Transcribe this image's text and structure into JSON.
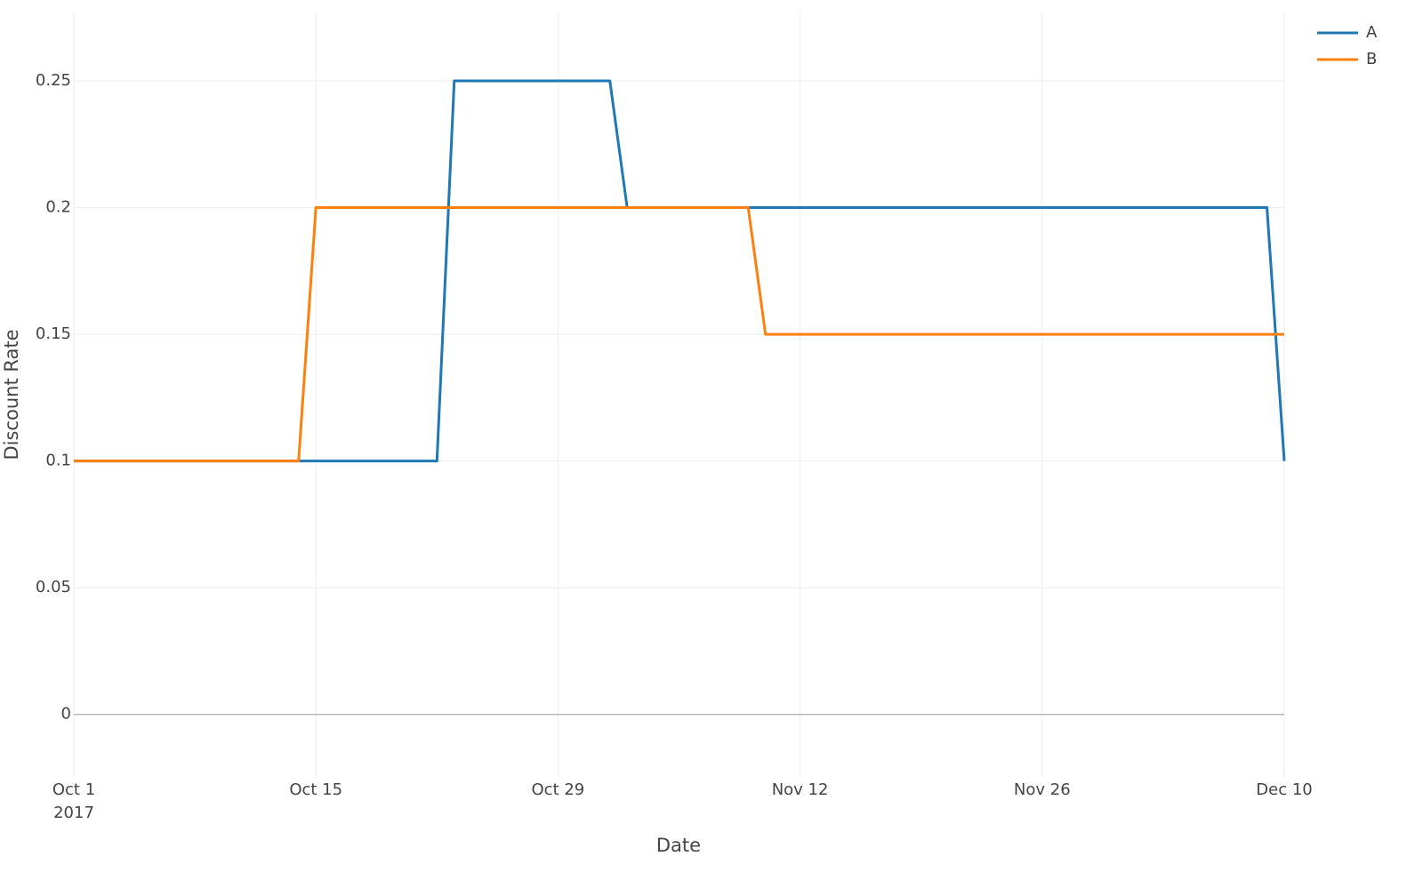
{
  "chart_data": {
    "type": "line",
    "x_label": "Date",
    "y_label": "Discount Rate",
    "x": [
      "2017-10-01",
      "2017-10-14",
      "2017-10-15",
      "2017-10-22",
      "2017-10-23",
      "2017-11-01",
      "2017-11-02",
      "2017-11-09",
      "2017-11-10",
      "2017-12-09",
      "2017-12-10"
    ],
    "series": [
      {
        "name": "A",
        "color": "#1f77b4",
        "values": [
          0.1,
          0.1,
          0.1,
          0.1,
          0.25,
          0.25,
          0.2,
          0.2,
          0.2,
          0.2,
          0.1
        ]
      },
      {
        "name": "B",
        "color": "#ff7f0e",
        "values": [
          0.1,
          0.1,
          0.2,
          0.2,
          0.2,
          0.2,
          0.2,
          0.2,
          0.15,
          0.15,
          0.15
        ]
      }
    ],
    "xlim": [
      "2017-10-01",
      "2017-12-10"
    ],
    "xticks": [
      {
        "value": "2017-10-01",
        "label": "Oct 1"
      },
      {
        "value": "2017-10-15",
        "label": "Oct 15"
      },
      {
        "value": "2017-10-29",
        "label": "Oct 29"
      },
      {
        "value": "2017-11-12",
        "label": "Nov 12"
      },
      {
        "value": "2017-11-26",
        "label": "Nov 26"
      },
      {
        "value": "2017-12-10",
        "label": "Dec 10"
      }
    ],
    "x_year_label": "2017",
    "ylim": [
      -0.025,
      0.277
    ],
    "yticks": [
      0,
      0.05,
      0.1,
      0.15,
      0.2,
      0.25
    ],
    "grid": true,
    "legend": "top-right"
  }
}
